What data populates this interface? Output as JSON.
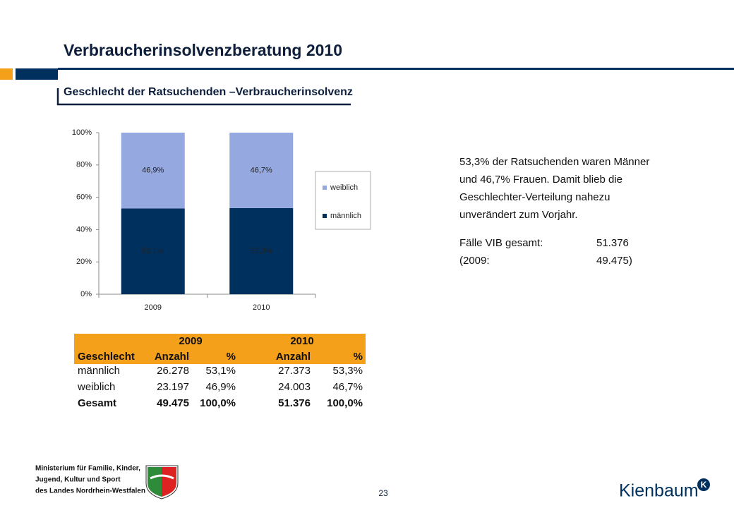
{
  "header": {
    "title": "Verbraucherinsolvenzberatung 2010",
    "subtitle": "Geschlecht der Ratsuchenden –Verbraucherinsolvenz"
  },
  "chart_data": {
    "type": "stacked_bar",
    "categories": [
      "2009",
      "2010"
    ],
    "series": [
      {
        "name": "männlich",
        "color": "#00305e",
        "label_color": "#ffffff",
        "values": [
          53.1,
          53.3
        ],
        "value_labels": [
          "53,1%",
          "53,3%"
        ]
      },
      {
        "name": "weiblich",
        "color": "#95a8e0",
        "label_color": "#1a2a4a",
        "values": [
          46.9,
          46.7
        ],
        "value_labels": [
          "46,9%",
          "46,7%"
        ]
      }
    ],
    "ylim": [
      0,
      100
    ],
    "yticks": [
      {
        "value": 0,
        "label": "0%"
      },
      {
        "value": 20,
        "label": "20%"
      },
      {
        "value": 40,
        "label": "40%"
      },
      {
        "value": 60,
        "label": "60%"
      },
      {
        "value": 80,
        "label": "80%"
      },
      {
        "value": 100,
        "label": "100%"
      }
    ],
    "legend": "right"
  },
  "summary": {
    "lines": [
      "53,3% der Ratsuchenden waren Männer",
      "und 46,7% Frauen. Damit blieb die",
      "Geschlechter-Verteilung nahezu",
      "unverändert zum Vorjahr."
    ],
    "cases": [
      [
        "Fälle VIB gesamt:",
        "51.376"
      ],
      [
        "(2009:",
        "49.475)"
      ]
    ]
  },
  "table": {
    "years": [
      "2009",
      "2010"
    ],
    "columns": [
      "Geschlecht",
      "Anzahl",
      "%",
      "Anzahl",
      "%"
    ],
    "rows": [
      [
        "männlich",
        "26.278",
        "53,1%",
        "27.373",
        "53,3%"
      ],
      [
        "weiblich",
        "23.197",
        "46,9%",
        "24.003",
        "46,7%"
      ],
      [
        "Gesamt",
        "49.475",
        "100,0%",
        "51.376",
        "100,0%"
      ]
    ]
  },
  "footer": {
    "ministry": [
      "Ministerium für Familie, Kinder,",
      "Jugend, Kultur und Sport",
      "des Landes Nordrhein-Westfalen"
    ],
    "page": "23",
    "brand": "Kienbaum",
    "brand_mark": "K"
  }
}
